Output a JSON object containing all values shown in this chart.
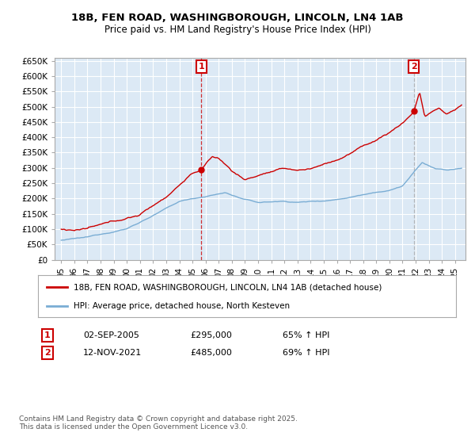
{
  "title": "18B, FEN ROAD, WASHINGBOROUGH, LINCOLN, LN4 1AB",
  "subtitle": "Price paid vs. HM Land Registry's House Price Index (HPI)",
  "background_color": "#ffffff",
  "chart_bg_color": "#dce9f5",
  "grid_color": "#ffffff",
  "red_color": "#cc0000",
  "blue_color": "#7aadd4",
  "vline1_color": "#cc0000",
  "vline2_color": "#aaaaaa",
  "ann1_x": 2005.67,
  "ann1_y": 295000,
  "ann2_x": 2021.87,
  "ann2_y": 485000,
  "ylim": [
    0,
    660000
  ],
  "xlim": [
    1994.5,
    2025.8
  ],
  "yticks": [
    0,
    50000,
    100000,
    150000,
    200000,
    250000,
    300000,
    350000,
    400000,
    450000,
    500000,
    550000,
    600000,
    650000
  ],
  "ytick_labels": [
    "£0",
    "£50K",
    "£100K",
    "£150K",
    "£200K",
    "£250K",
    "£300K",
    "£350K",
    "£400K",
    "£450K",
    "£500K",
    "£550K",
    "£600K",
    "£650K"
  ],
  "xticks": [
    1995,
    1996,
    1997,
    1998,
    1999,
    2000,
    2001,
    2002,
    2003,
    2004,
    2005,
    2006,
    2007,
    2008,
    2009,
    2010,
    2011,
    2012,
    2013,
    2014,
    2015,
    2016,
    2017,
    2018,
    2019,
    2020,
    2021,
    2022,
    2023,
    2024,
    2025
  ],
  "xtick_labels": [
    "95",
    "96",
    "97",
    "98",
    "99",
    "00",
    "01",
    "02",
    "03",
    "04",
    "05",
    "06",
    "07",
    "08",
    "09",
    "10",
    "11",
    "12",
    "13",
    "14",
    "15",
    "16",
    "17",
    "18",
    "19",
    "20",
    "21",
    "22",
    "23",
    "24",
    "25"
  ],
  "legend_red_label": "18B, FEN ROAD, WASHINGBOROUGH, LINCOLN, LN4 1AB (detached house)",
  "legend_blue_label": "HPI: Average price, detached house, North Kesteven",
  "ann1_date": "02-SEP-2005",
  "ann1_price": "£295,000",
  "ann1_hpi": "65% ↑ HPI",
  "ann2_date": "12-NOV-2021",
  "ann2_price": "£485,000",
  "ann2_hpi": "69% ↑ HPI",
  "footer": "Contains HM Land Registry data © Crown copyright and database right 2025.\nThis data is licensed under the Open Government Licence v3.0."
}
